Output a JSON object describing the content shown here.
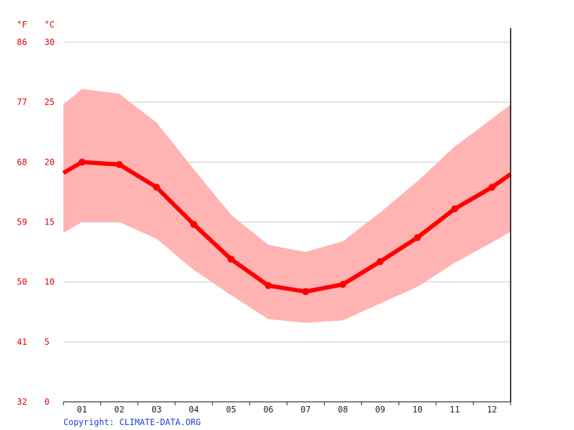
{
  "chart_data": {
    "type": "line",
    "categories": [
      "01",
      "02",
      "03",
      "04",
      "05",
      "06",
      "07",
      "08",
      "09",
      "10",
      "11",
      "12"
    ],
    "series": [
      {
        "values": [
          20.0,
          19.8,
          17.9,
          14.8,
          11.9,
          9.7,
          9.2,
          9.8,
          11.7,
          13.7,
          16.1,
          17.9
        ]
      }
    ],
    "range_max": [
      26.1,
      25.7,
      23.3,
      19.4,
      15.6,
      13.1,
      12.5,
      13.4,
      15.8,
      18.4,
      21.3,
      23.6
    ],
    "range_min": [
      15.0,
      15.0,
      13.6,
      11.0,
      8.9,
      6.9,
      6.6,
      6.8,
      8.2,
      9.6,
      11.6,
      13.3
    ],
    "edge_start": {
      "avg": 19.1,
      "max": 24.8,
      "min": 14.1
    },
    "edge_end": {
      "avg": 19.0,
      "max": 24.8,
      "min": 14.2
    },
    "celsius_ticks": [
      "0",
      "5",
      "10",
      "15",
      "20",
      "25",
      "30"
    ],
    "fahrenheit_ticks": [
      "32",
      "41",
      "50",
      "59",
      "68",
      "77",
      "86"
    ],
    "ylim": [
      0,
      30
    ],
    "grid": true,
    "colors": {
      "line": "#ff0000",
      "band": "#ffb3b3",
      "axis_labels": "#e00000",
      "grid": "#c8c8c8"
    }
  },
  "units": {
    "fahrenheit": "°F",
    "celsius": "°C"
  },
  "copyright": "Copyright: CLIMATE-DATA.ORG"
}
